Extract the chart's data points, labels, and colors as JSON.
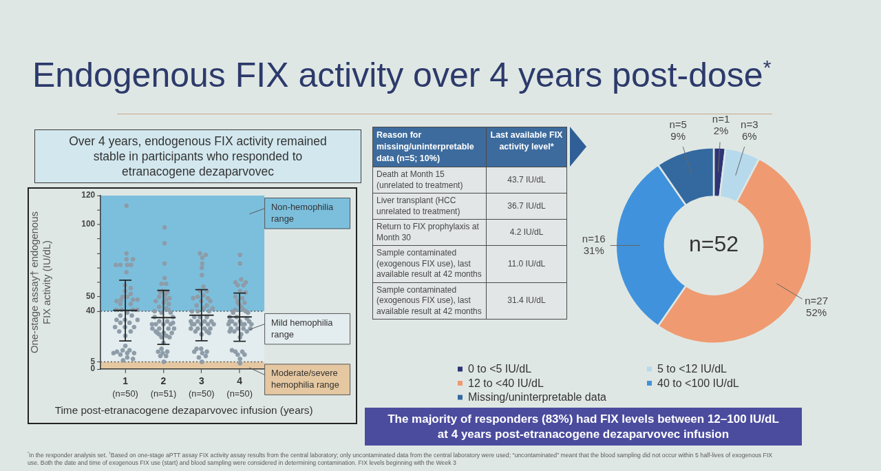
{
  "chart_data": [
    {
      "type": "scatter",
      "title": "Endogenous FIX activity over 4 years post-dose$^{*}$",
      "subtitle": "Over 4 years, endogenous FIX activity remained stable in participants who responded to etranacogene dezaparvovec",
      "xlabel": "Time post-etranacogene dezaparvovec infusion (years)",
      "ylabel": "One-stage assay† endogenous FIX activity (IU/dL)",
      "xlim": [
        0.35,
        4.65
      ],
      "xticks": [
        1,
        2,
        3,
        4
      ],
      "ylim": [
        0,
        120
      ],
      "yticks": [
        0,
        5,
        40,
        50,
        {
          "value": 60,
          "label": null
        },
        {
          "value": 70,
          "label": null
        },
        {
          "value": 80,
          "label": null
        },
        {
          "value": 90,
          "label": null
        },
        100,
        {
          "value": 110,
          "label": null
        },
        120
      ],
      "marker": "circle",
      "series": [
        {
          "color": "#8d9ca8",
          "x": [
            1.03,
            1.03,
            1.03,
            1.2,
            0.75,
            0.87,
            1.05,
            1.15,
            1.03,
            0.99,
            1.14,
            0.99,
            1.14,
            0.93,
            1.05,
            0.77,
            0.89,
            1.2,
            1.32,
            0.87,
            1.14,
            0.76,
            0.9,
            1.2,
            1.32,
            1.05,
            0.87,
            1.17,
            0.77,
            0.99,
            1.32,
            0.87,
            1.11,
            0.73,
            0.99,
            1.23,
            0.84,
            1.14,
            1.0,
            0.78,
            0.93,
            1.11,
            1.23,
            1.0,
            1.05,
            0.87,
            1.05,
            0.94,
            1.2,
            0.69,
            2.03,
            2.03,
            2.03,
            2.03,
            1.95,
            2.07,
            1.92,
            2.1,
            1.89,
            2.04,
            2.16,
            1.8,
            2.01,
            2.14,
            1.89,
            2.07,
            1.77,
            1.95,
            2.19,
            1.77,
            2.25,
            1.89,
            2.1,
            1.8,
            2.0,
            2.19,
            1.71,
            1.89,
            2.13,
            2.28,
            1.8,
            2.01,
            2.22,
            1.89,
            2.08,
            1.95,
            2.0,
            1.95,
            1.86,
            2.1,
            1.98,
            2.07,
            1.92,
            2.01,
            2.25,
            1.7,
            2.07,
            1.98,
            2.13,
            1.84,
            2.16,
            2.96,
            3.11,
            3.02,
            3.02,
            3.01,
            3.01,
            3.05,
            2.96,
            3.14,
            3.05,
            2.9,
            3.17,
            2.99,
            2.87,
            3.14,
            3.05,
            3.29,
            2.75,
            2.9,
            3.2,
            2.81,
            2.96,
            3.14,
            2.72,
            2.9,
            3.08,
            3.26,
            2.81,
            2.99,
            3.17,
            2.72,
            2.9,
            3.08,
            3.23,
            2.84,
            3.14,
            3.0,
            2.87,
            2.99,
            3.14,
            2.81,
            3.02,
            3.11,
            2.93,
            3.01,
            3.23,
            2.78,
            3.32,
            2.75,
            3.2,
            4.01,
            4.01,
            4.04,
            3.89,
            4.16,
            3.95,
            4.1,
            4.01,
            3.89,
            4.07,
            3.95,
            4.13,
            4.04,
            3.83,
            4.16,
            3.74,
            3.92,
            4.19,
            3.8,
            4.01,
            4.25,
            3.71,
            3.89,
            4.13,
            3.77,
            3.95,
            4.1,
            4.28,
            3.86,
            4.19,
            4.04,
            4.01,
            3.89,
            4.07,
            3.95,
            4.13,
            4.01,
            4.01,
            3.8,
            3.83,
            4.22,
            3.74,
            3.98,
            4.1,
            3.89,
            4.16,
            3.95,
            4.31,
            3.74,
            4.07
          ],
          "values": [
            113,
            80,
            76,
            76,
            72,
            72,
            72,
            72,
            67,
            58,
            56,
            54,
            52,
            50,
            50,
            47,
            48,
            48,
            48,
            45,
            45,
            41,
            41,
            41,
            41,
            39,
            37,
            37,
            34,
            34,
            34,
            32,
            32,
            29,
            29,
            29,
            26,
            26,
            23,
            12,
            13,
            13,
            11,
            16,
            11,
            10,
            8,
            6,
            7,
            11,
            98,
            87,
            73,
            63,
            59,
            59,
            53,
            53,
            50,
            51,
            49,
            47,
            46,
            45,
            43,
            42,
            40,
            39,
            39,
            36,
            36,
            33,
            33,
            31,
            31,
            31,
            28,
            28,
            28,
            28,
            26,
            25,
            25,
            24,
            23,
            22,
            18,
            14,
            12,
            12,
            11,
            9,
            9,
            5,
            32,
            31,
            48,
            54,
            41,
            25,
            22,
            80,
            79,
            77,
            73,
            70,
            65,
            57,
            54,
            54,
            51,
            50,
            49,
            47,
            44,
            44,
            42,
            42,
            40,
            40,
            40,
            36,
            36,
            36,
            33,
            33,
            33,
            33,
            31,
            31,
            31,
            28,
            28,
            28,
            28,
            26,
            26,
            24,
            14,
            14,
            12,
            12,
            11,
            9,
            8,
            5,
            47,
            49,
            31,
            31,
            25,
            79,
            73,
            62,
            60,
            60,
            58,
            58,
            54,
            50,
            49,
            46,
            46,
            43,
            40,
            40,
            36,
            36,
            35,
            33,
            33,
            33,
            31,
            31,
            31,
            28,
            28,
            28,
            28,
            26,
            26,
            24,
            22,
            12,
            12,
            10,
            10,
            7,
            4,
            13,
            39,
            39,
            33,
            45,
            41,
            41,
            53,
            47,
            31,
            26,
            31
          ]
        },
        {
          "type": "line",
          "color": "#262626",
          "marker": "none",
          "x": [
            0.68,
            1,
            1.32
          ],
          "values": [
            40.6,
            40.6,
            40.6
          ],
          "errors": [
            null,
            [
              19.4,
              61.5
            ],
            null
          ]
        },
        {
          "type": "line",
          "color": "#262626",
          "marker": "none",
          "x": [
            1.68,
            2,
            2.32
          ],
          "values": [
            35.6,
            35.6,
            35.6
          ],
          "errors": [
            null,
            [
              17.1,
              54.4
            ],
            null
          ]
        },
        {
          "type": "line",
          "color": "#262626",
          "marker": "none",
          "x": [
            2.68,
            3,
            3.32
          ],
          "values": [
            37.2,
            37.2,
            37.2
          ],
          "errors": [
            null,
            [
              19.6,
              54.9
            ],
            null
          ]
        },
        {
          "type": "line",
          "color": "#262626",
          "marker": "none",
          "x": [
            3.68,
            4,
            4.32
          ],
          "values": [
            36.1,
            36.1,
            36.1
          ],
          "errors": [
            null,
            [
              19.2,
              52.6
            ],
            null
          ]
        }
      ],
      "bands": [
        {
          "axis": "y",
          "from": 40,
          "to": 120,
          "label": "Non-hemophilia range",
          "color": "#7cbfdd"
        },
        {
          "axis": "y",
          "from": 5,
          "to": 40,
          "label": "Mild hemophilia range",
          "color": "#e3ecee"
        },
        {
          "axis": "y",
          "from": 0,
          "to": 5,
          "label": "Moderate/severe hemophilia range",
          "color": "#e5c8a1"
        }
      ],
      "ref_lines": [
        {
          "axis": "y",
          "value": 40,
          "line_style": "dotted"
        },
        {
          "axis": "y",
          "value": 5,
          "line_style": "dotted"
        }
      ],
      "annotations": [
        "(n=50)",
        "(n=51)",
        "(n=50)",
        "(n=50)",
        "$^{*}$In the responder analysis set. $^{†}$Based on one-stage aPTT assay FIX activity assay results from the central laboratory; only uncontaminated data from the central laboratory were used; “uncontaminated” meant that the blood sampling did not occur within 5 half-lives of exogenous FIX use. Both the date and time of exogenous FIX use (start) and blood sampling were considered in determining contamination. FIX levels beginning with the Week 3"
      ]
    },
    {
      "type": "other",
      "annotations": [
        "Reason for missing/uninterpretable data (n=5; 10%)",
        "Last available FIX activity level*",
        "Death at Month 15 (unrelated to treatment)",
        "43.7 IU/dL",
        "Liver transplant (HCC unrelated to treatment)",
        "36.7 IU/dL",
        "Return to FIX prophylaxis at Month 30",
        "4.2 IU/dL",
        "Sample contaminated (exogenous FIX use), last available result at 42 months",
        "11.0 IU/dL",
        "Sample contaminated (exogenous FIX use), last available result at 42 months",
        "31.4 IU/dL"
      ]
    },
    {
      "type": "donut",
      "categories": [
        "0 to <5 IU/dL",
        "5 to <12 IU/dL",
        "12 to <40 IU/dL",
        "40 to <100 IU/dL",
        "Missing/uninterpretable data"
      ],
      "values": [
        1,
        3,
        27,
        16,
        5
      ],
      "colors": [
        "#2d3575",
        "#b7d9ec",
        "#ef9a70",
        "#4192dc",
        "#33699f"
      ],
      "value_labels": [
        "n=1\n2%",
        "n=3\n6%",
        "n=27\n52%",
        "n=16\n31%",
        "n=5\n9%"
      ],
      "legend": "bottom",
      "annotations": [
        "n=52",
        "The majority of responders (83%) had FIX levels between 12–100 IU/dL at 4 years post-etranacogene dezaparvovec infusion"
      ]
    }
  ]
}
